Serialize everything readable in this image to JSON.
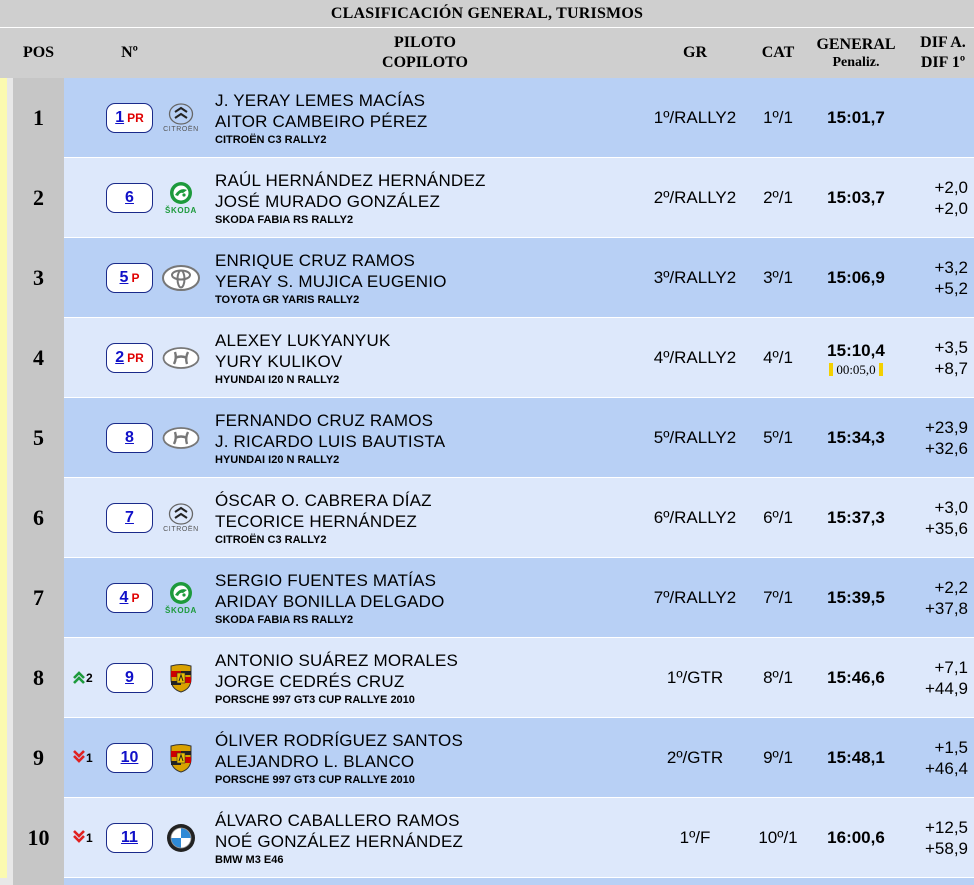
{
  "title": "CLASIFICACIÓN GENERAL, TURISMOS",
  "headers": {
    "pos": "POS",
    "num": "Nº",
    "piloto": "PILOTO",
    "copiloto": "COPILOTO",
    "gr": "GR",
    "cat": "CAT",
    "general": "GENERAL",
    "penaliz": "Penaliz.",
    "dif_prev": "DIF A.",
    "dif_first": "DIF 1º"
  },
  "colors": {
    "row_odd": "#b8d0f5",
    "row_even": "#dde8fb",
    "header": "#cfcfcf",
    "number": "#1010c8",
    "tag": "#e00000"
  },
  "rows": [
    {
      "pos": "1",
      "move": "",
      "dir": "",
      "num": "1",
      "tag": "PR",
      "brand": "CITROËN",
      "logo": "citroen-logo",
      "driver": "J. YERAY LEMES MACÍAS",
      "codriver": "AITOR CAMBEIRO PÉREZ",
      "car": "CITROËN C3 RALLY2",
      "gr": "1º/RALLY2",
      "cat": "1º/1",
      "time": "15:01,7",
      "penalty": "",
      "dif_prev": "",
      "dif_first": ""
    },
    {
      "pos": "2",
      "move": "",
      "dir": "",
      "num": "6",
      "tag": "",
      "brand": "ŠKODA",
      "logo": "skoda-logo",
      "driver": "RAÚL HERNÁNDEZ HERNÁNDEZ",
      "codriver": "JOSÉ MURADO GONZÁLEZ",
      "car": "SKODA FABIA RS RALLY2",
      "gr": "2º/RALLY2",
      "cat": "2º/1",
      "time": "15:03,7",
      "penalty": "",
      "dif_prev": "+2,0",
      "dif_first": "+2,0"
    },
    {
      "pos": "3",
      "move": "",
      "dir": "",
      "num": "5",
      "tag": "P",
      "brand": "",
      "logo": "toyota-logo",
      "driver": "ENRIQUE CRUZ RAMOS",
      "codriver": "YERAY S. MUJICA EUGENIO",
      "car": "TOYOTA GR YARIS RALLY2",
      "gr": "3º/RALLY2",
      "cat": "3º/1",
      "time": "15:06,9",
      "penalty": "",
      "dif_prev": "+3,2",
      "dif_first": "+5,2"
    },
    {
      "pos": "4",
      "move": "",
      "dir": "",
      "num": "2",
      "tag": "PR",
      "brand": "",
      "logo": "hyundai-logo",
      "driver": "ALEXEY LUKYANYUK",
      "codriver": "YURY KULIKOV",
      "car": "HYUNDAI I20 N RALLY2",
      "gr": "4º/RALLY2",
      "cat": "4º/1",
      "time": "15:10,4",
      "penalty": "00:05,0",
      "dif_prev": "+3,5",
      "dif_first": "+8,7"
    },
    {
      "pos": "5",
      "move": "",
      "dir": "",
      "num": "8",
      "tag": "",
      "brand": "",
      "logo": "hyundai-logo",
      "driver": "FERNANDO CRUZ RAMOS",
      "codriver": "J. RICARDO LUIS BAUTISTA",
      "car": "HYUNDAI I20 N RALLY2",
      "gr": "5º/RALLY2",
      "cat": "5º/1",
      "time": "15:34,3",
      "penalty": "",
      "dif_prev": "+23,9",
      "dif_first": "+32,6"
    },
    {
      "pos": "6",
      "move": "",
      "dir": "",
      "num": "7",
      "tag": "",
      "brand": "CITROËN",
      "logo": "citroen-logo",
      "driver": "ÓSCAR O. CABRERA DÍAZ",
      "codriver": "TECORICE HERNÁNDEZ",
      "car": "CITROËN C3 RALLY2",
      "gr": "6º/RALLY2",
      "cat": "6º/1",
      "time": "15:37,3",
      "penalty": "",
      "dif_prev": "+3,0",
      "dif_first": "+35,6"
    },
    {
      "pos": "7",
      "move": "",
      "dir": "",
      "num": "4",
      "tag": "P",
      "brand": "ŠKODA",
      "logo": "skoda-logo",
      "driver": "SERGIO FUENTES MATÍAS",
      "codriver": "ARIDAY BONILLA DELGADO",
      "car": "SKODA FABIA RS RALLY2",
      "gr": "7º/RALLY2",
      "cat": "7º/1",
      "time": "15:39,5",
      "penalty": "",
      "dif_prev": "+2,2",
      "dif_first": "+37,8"
    },
    {
      "pos": "8",
      "move": "2",
      "dir": "up",
      "num": "9",
      "tag": "",
      "brand": "",
      "logo": "porsche-logo",
      "driver": "ANTONIO SUÁREZ MORALES",
      "codriver": "JORGE CEDRÉS CRUZ",
      "car": "PORSCHE 997 GT3 CUP RALLYE 2010",
      "gr": "1º/GTR",
      "cat": "8º/1",
      "time": "15:46,6",
      "penalty": "",
      "dif_prev": "+7,1",
      "dif_first": "+44,9"
    },
    {
      "pos": "9",
      "move": "1",
      "dir": "down",
      "num": "10",
      "tag": "",
      "brand": "",
      "logo": "porsche-logo",
      "driver": "ÓLIVER RODRÍGUEZ SANTOS",
      "codriver": "ALEJANDRO L. BLANCO",
      "car": "PORSCHE 997 GT3 CUP RALLYE 2010",
      "gr": "2º/GTR",
      "cat": "9º/1",
      "time": "15:48,1",
      "penalty": "",
      "dif_prev": "+1,5",
      "dif_first": "+46,4"
    },
    {
      "pos": "10",
      "move": "1",
      "dir": "down",
      "num": "11",
      "tag": "",
      "brand": "",
      "logo": "bmw-logo",
      "driver": "ÁLVARO CABALLERO RAMOS",
      "codriver": "NOÉ GONZÁLEZ HERNÁNDEZ",
      "car": "BMW M3 E46",
      "gr": "1º/F",
      "cat": "10º/1",
      "time": "16:00,6",
      "penalty": "",
      "dif_prev": "+12,5",
      "dif_first": "+58,9"
    }
  ]
}
